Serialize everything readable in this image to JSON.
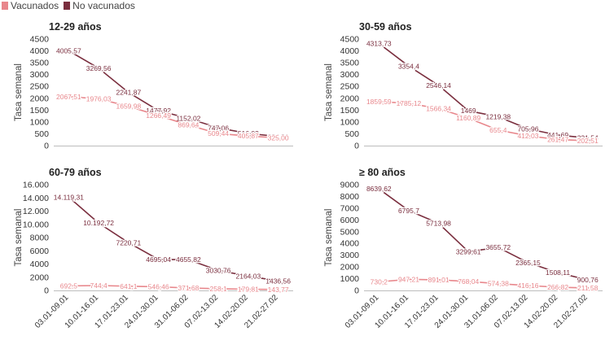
{
  "legend": {
    "vacunados": {
      "label": "Vacunados",
      "color": "#e8878c"
    },
    "no_vacunados": {
      "label": "No vacunados",
      "color": "#7a2e3e"
    }
  },
  "chart_data": [
    {
      "type": "line",
      "title": "12-29 años",
      "ylabel": "Tasa semanal",
      "ylim": [
        0,
        4500
      ],
      "yticks": [
        0,
        500,
        1000,
        1500,
        2000,
        2500,
        3000,
        3500,
        4000,
        4500
      ],
      "ytick_labels": [
        "0",
        "500",
        "1000",
        "1500",
        "2000",
        "2500",
        "3000",
        "3500",
        "4000",
        "4500"
      ],
      "categories": [
        "03.01-09.01",
        "10.01-16.01",
        "17.01-23.01",
        "24.01-30.01",
        "31.01-06.02",
        "07.02-13.02",
        "14.02-20.02",
        "21.02-27.02"
      ],
      "show_xticks": false,
      "series": [
        {
          "name": "No vacunados",
          "values": [
            4005.57,
            3269.56,
            2241.87,
            1477.92,
            1152.02,
            747.06,
            516.03,
            384.91
          ],
          "labels": [
            "4005,57",
            "3269,56",
            "2241,87",
            "1477,92",
            "1152,02",
            "747,06",
            "516,03",
            "384,91"
          ]
        },
        {
          "name": "Vacunados",
          "values": [
            2067.51,
            1976.03,
            1659.98,
            1266.49,
            869.64,
            509.44,
            405.87,
            325.0
          ],
          "labels": [
            "2067,51",
            "1976,03",
            "1659,98",
            "1266,49",
            "869,64",
            "509,44",
            "405,87",
            "325,00"
          ]
        }
      ]
    },
    {
      "type": "line",
      "title": "30-59 años",
      "ylabel": "Tasa semanal",
      "ylim": [
        0,
        4500
      ],
      "yticks": [
        0,
        500,
        1000,
        1500,
        2000,
        2500,
        3000,
        3500,
        4000,
        4500
      ],
      "ytick_labels": [
        "0",
        "500",
        "1000",
        "1500",
        "2000",
        "2500",
        "3000",
        "3500",
        "4000",
        "4500"
      ],
      "categories": [
        "03.01-09.01",
        "10.01-16.01",
        "17.01-23.01",
        "24.01-30.01",
        "31.01-06.02",
        "07.02-13.02",
        "14.02-20.02",
        "21.02-27.02"
      ],
      "show_xticks": false,
      "series": [
        {
          "name": "No vacunados",
          "values": [
            4313.73,
            3354.4,
            2546.14,
            1469,
            1219.38,
            705.96,
            441.69,
            321.54
          ],
          "labels": [
            "4313,73",
            "3354,4",
            "2546,14",
            "1469",
            "1219,38",
            "705,96",
            "441,69",
            "321,54"
          ]
        },
        {
          "name": "Vacunados",
          "values": [
            1859.59,
            1785.12,
            1566.34,
            1160.89,
            655.4,
            412.03,
            261.47,
            202.51
          ],
          "labels": [
            "1859,59",
            "1785,12",
            "1566,34",
            "1160,89",
            "655,4",
            "412,03",
            "261,47",
            "202,51"
          ]
        }
      ]
    },
    {
      "type": "line",
      "title": "60-79 años",
      "ylabel": "Tasa semanal",
      "ylim": [
        0,
        16000
      ],
      "yticks": [
        0,
        2000,
        4000,
        6000,
        8000,
        10000,
        12000,
        14000,
        16000
      ],
      "ytick_labels": [
        "0",
        "2000",
        "4000",
        "6000",
        "8000",
        "10.000",
        "12.000",
        "14.000",
        "16.000"
      ],
      "categories": [
        "03.01-09.01",
        "10.01-16.01",
        "17.01-23.01",
        "24.01-30.01",
        "31.01-06.02",
        "07.02-13.02",
        "14.02-20.02",
        "21.02-27.02"
      ],
      "show_xticks": true,
      "series": [
        {
          "name": "No vacunados",
          "values": [
            14119.31,
            10192.72,
            7220.71,
            4695.04,
            4655.82,
            3030.76,
            2164.03,
            1436.56
          ],
          "labels": [
            "14.119,31",
            "10.192,72",
            "7220,71",
            "4695,04",
            "4655,82",
            "3030,76",
            "2164,03",
            "1436,56"
          ]
        },
        {
          "name": "Vacunados",
          "values": [
            692.5,
            744.4,
            641.1,
            546.46,
            371.68,
            258.1,
            179.81,
            143.77
          ],
          "labels": [
            "692,5",
            "744,4",
            "641,1",
            "546,46",
            "371,68",
            "258,1",
            "179,81",
            "143,77"
          ]
        }
      ]
    },
    {
      "type": "line",
      "title": "≥ 80 años",
      "ylabel": "Tasa semanal",
      "ylim": [
        0,
        9000
      ],
      "yticks": [
        0,
        1000,
        2000,
        3000,
        4000,
        5000,
        6000,
        7000,
        8000,
        9000
      ],
      "ytick_labels": [
        "0",
        "1000",
        "2000",
        "3000",
        "4000",
        "5000",
        "6000",
        "7000",
        "8000",
        "9000"
      ],
      "categories": [
        "03.01-09.01",
        "10.01-16.01",
        "17.01-23.01",
        "24.01-30.01",
        "31.01-06.02",
        "07.02-13.02",
        "14.02-20.02",
        "21.02-27.02"
      ],
      "show_xticks": true,
      "series": [
        {
          "name": "No vacunados",
          "values": [
            8639.62,
            6795.7,
            5713.98,
            3299.61,
            3655.72,
            2365.15,
            1508.11,
            900.76
          ],
          "labels": [
            "8639,62",
            "6795,7",
            "5713,98",
            "3299,61",
            "3655,72",
            "2365,15",
            "1508,11",
            "900,76"
          ]
        },
        {
          "name": "Vacunados",
          "values": [
            730.2,
            947.21,
            891.01,
            768.04,
            574.38,
            416.16,
            266.82,
            211.58
          ],
          "labels": [
            "730,2",
            "947,21",
            "891,01",
            "768,04",
            "574,38",
            "416,16",
            "266,82",
            "211,58"
          ]
        }
      ]
    }
  ]
}
